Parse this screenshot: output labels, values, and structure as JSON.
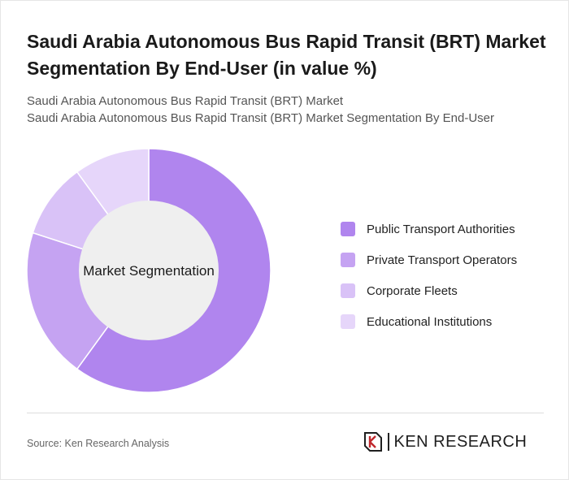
{
  "header": {
    "title": "Saudi Arabia Autonomous Bus Rapid Transit (BRT) Market Segmentation By End-User (in value %)",
    "subtitle_line1": "Saudi Arabia Autonomous Bus Rapid Transit (BRT) Market",
    "subtitle_line2": "Saudi Arabia Autonomous Bus Rapid Transit (BRT) Market Segmentation By End-User"
  },
  "chart_data": {
    "type": "pie",
    "variant": "donut",
    "center_label": "Market Segmentation",
    "categories": [
      "Public Transport Authorities",
      "Private Transport Operators",
      "Corporate Fleets",
      "Educational Institutions"
    ],
    "values": [
      60,
      20,
      10,
      10
    ],
    "colors": [
      "#b085ee",
      "#c5a3f2",
      "#d9c2f7",
      "#e6d6fa"
    ],
    "legend_position": "right"
  },
  "footer": {
    "source": "Source: Ken Research Analysis",
    "logo_text": "KEN RESEARCH"
  }
}
